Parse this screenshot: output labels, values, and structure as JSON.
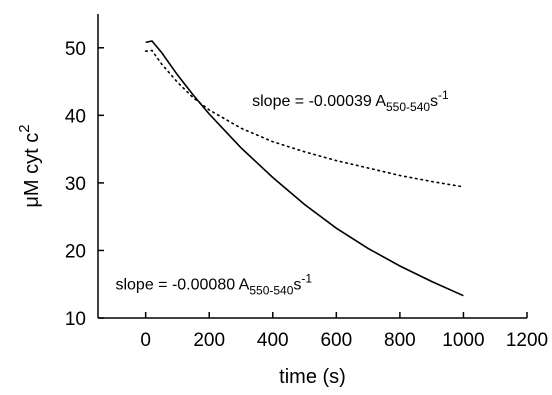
{
  "chart_data": {
    "type": "line",
    "xlabel": "time (s)",
    "ylabel_main": "μM cyt c",
    "ylabel_sup": "2",
    "xlim": [
      -150,
      1200
    ],
    "ylim": [
      10,
      55
    ],
    "xticks": [
      0,
      200,
      400,
      600,
      800,
      1000,
      1200
    ],
    "yticks": [
      10,
      20,
      30,
      40,
      50
    ],
    "grid": false,
    "series": [
      {
        "style": "solid",
        "color": "#000000",
        "x": [
          0,
          20,
          50,
          100,
          150,
          200,
          300,
          400,
          500,
          600,
          700,
          800,
          900,
          1000
        ],
        "y": [
          50.8,
          51.0,
          49.3,
          46.0,
          43.0,
          40.2,
          35.2,
          30.8,
          26.8,
          23.3,
          20.3,
          17.7,
          15.4,
          13.3
        ]
      },
      {
        "style": "dotted",
        "color": "#000000",
        "x": [
          0,
          20,
          50,
          100,
          150,
          200,
          300,
          400,
          500,
          600,
          700,
          800,
          900,
          1000
        ],
        "y": [
          49.5,
          49.6,
          47.6,
          44.9,
          42.6,
          40.8,
          38.1,
          36.1,
          34.6,
          33.3,
          32.2,
          31.1,
          30.2,
          29.4
        ]
      }
    ],
    "annotations": [
      {
        "main": "slope = -0.00039 A",
        "sub": "550-540",
        "unit": "s",
        "sup": "-1",
        "x": 335,
        "y": 41.4
      },
      {
        "main": "slope = -0.00080 A",
        "sub": "550-540",
        "unit": "s",
        "sup": "-1",
        "x": -95,
        "y": 14.2
      }
    ]
  }
}
